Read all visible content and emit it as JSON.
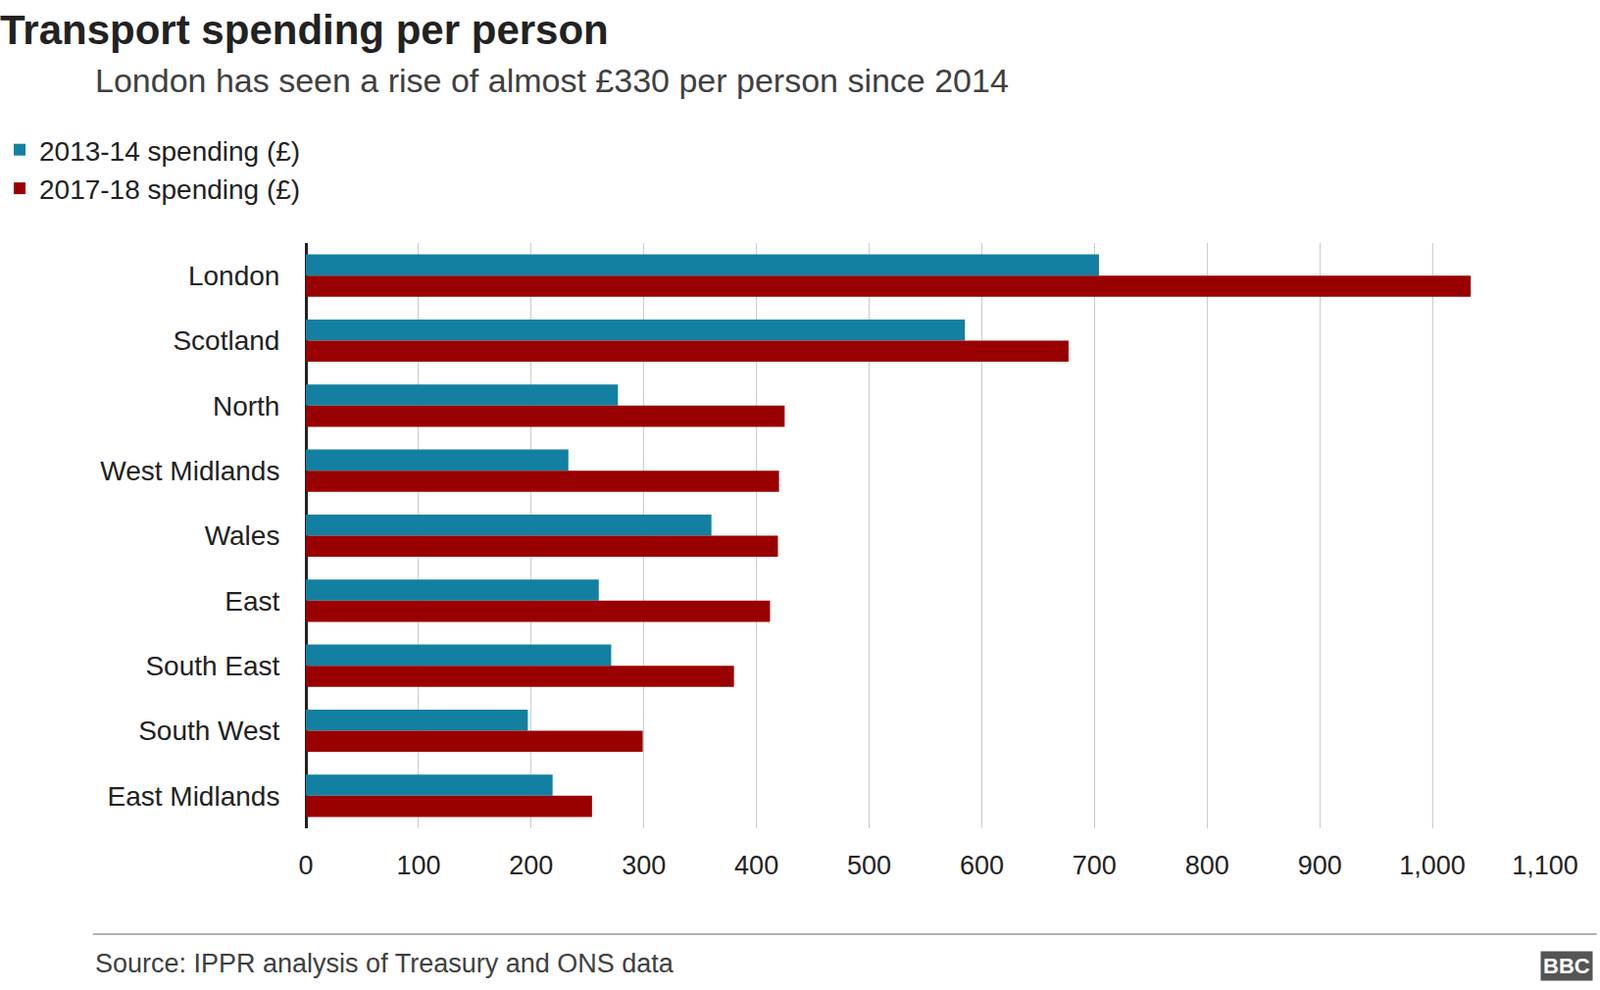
{
  "chart_data": {
    "type": "bar",
    "orientation": "horizontal",
    "title": "Transport spending per person",
    "subtitle": "London has seen a rise of almost £330 per person since 2014",
    "source": "Source: IPPR analysis of Treasury and ONS data",
    "logo": "BBC",
    "categories": [
      "London",
      "Scotland",
      "North",
      "West Midlands",
      "Wales",
      "East",
      "South East",
      "South West",
      "East Midlands"
    ],
    "series": [
      {
        "name": "2013-14 spending (£)",
        "color": "#1380a1",
        "values": [
          704,
          585,
          277,
          233,
          360,
          260,
          271,
          197,
          219
        ]
      },
      {
        "name": "2017-18 spending (£)",
        "color": "#990000",
        "values": [
          1034,
          677,
          425,
          420,
          419,
          412,
          380,
          299,
          254
        ]
      }
    ],
    "xlim": [
      0,
      1100
    ],
    "xticks": [
      0,
      100,
      200,
      300,
      400,
      500,
      600,
      700,
      800,
      900,
      {
        "value": 1000,
        "label": "1,000"
      },
      {
        "value": 1100,
        "label": "1,100"
      }
    ],
    "grid": true,
    "legend": "top-left"
  }
}
